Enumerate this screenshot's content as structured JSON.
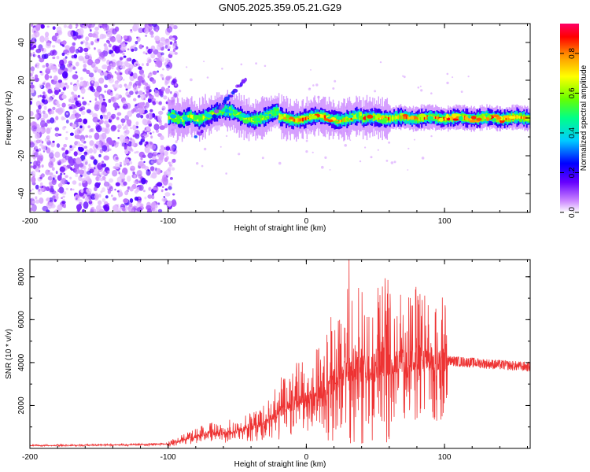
{
  "title": "GN05.2025.359.05.21.G29",
  "chart_data": [
    {
      "type": "heatmap",
      "name": "spectrogram",
      "xlabel": "Height of straight line (km)",
      "ylabel": "Frequency (Hz)",
      "xlim": [
        -200,
        162
      ],
      "ylim": [
        -50,
        50
      ],
      "xticks": [
        -200,
        -100,
        0,
        100
      ],
      "yticks": [
        -40,
        -20,
        0,
        20,
        40
      ],
      "colorbar": {
        "label": "Normalized spectral amplitude",
        "range": [
          0.0,
          0.95
        ],
        "ticks": [
          0.0,
          0.2,
          0.4,
          0.6,
          0.8
        ],
        "colors": [
          "#ffffff",
          "#cc88ff",
          "#6600ff",
          "#0000ff",
          "#00ccff",
          "#00ff88",
          "#66ff00",
          "#ffff00",
          "#ff8800",
          "#ff0000",
          "#ff0066"
        ]
      },
      "features": {
        "noise_region_km": [
          -200,
          -100
        ],
        "signal_line_hz": 0,
        "signal_start_km": -100,
        "spur_peak": {
          "x": -44,
          "y": 21
        }
      }
    },
    {
      "type": "line",
      "name": "snr",
      "xlabel": "Height of straight line (km)",
      "ylabel": "SNR (10 * v/v)",
      "xlim": [
        -200,
        162
      ],
      "ylim": [
        0,
        8800
      ],
      "xticks": [
        -200,
        -100,
        0,
        100
      ],
      "yticks": [
        2000,
        4000,
        6000,
        8000
      ],
      "series_color": "#ee3333",
      "profile": [
        [
          -200,
          130
        ],
        [
          -150,
          150
        ],
        [
          -120,
          170
        ],
        [
          -100,
          200
        ],
        [
          -90,
          380
        ],
        [
          -80,
          550
        ],
        [
          -70,
          750
        ],
        [
          -60,
          700
        ],
        [
          -50,
          850
        ],
        [
          -40,
          950
        ],
        [
          -30,
          1200
        ],
        [
          -20,
          1700
        ],
        [
          -10,
          2100
        ],
        [
          0,
          2300
        ],
        [
          10,
          2600
        ],
        [
          20,
          3100
        ],
        [
          25,
          3300
        ],
        [
          30,
          3600
        ],
        [
          40,
          3800
        ],
        [
          50,
          3900
        ],
        [
          60,
          4000
        ],
        [
          70,
          4100
        ],
        [
          80,
          4200
        ],
        [
          90,
          4150
        ],
        [
          100,
          4100
        ],
        [
          110,
          4050
        ],
        [
          130,
          3950
        ],
        [
          150,
          3850
        ],
        [
          162,
          3800
        ]
      ],
      "peak": {
        "x": 31,
        "y": 8800
      }
    }
  ]
}
